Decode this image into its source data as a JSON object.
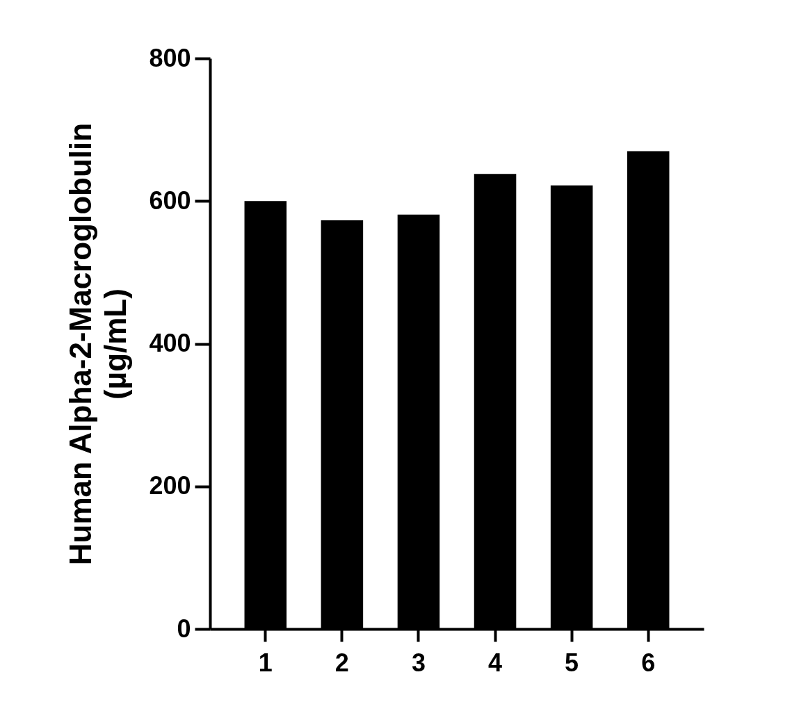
{
  "chart_data": {
    "type": "bar",
    "ylabel": "Human Alpha-2-Macroglobulin\n(µg/mL)",
    "categories": [
      "1",
      "2",
      "3",
      "4",
      "5",
      "6"
    ],
    "values": [
      600,
      573,
      581,
      638,
      622,
      670
    ],
    "color": "#000000",
    "ylim": [
      0,
      800
    ],
    "yticks": [
      0,
      200,
      400,
      600,
      800
    ],
    "grid": false
  }
}
